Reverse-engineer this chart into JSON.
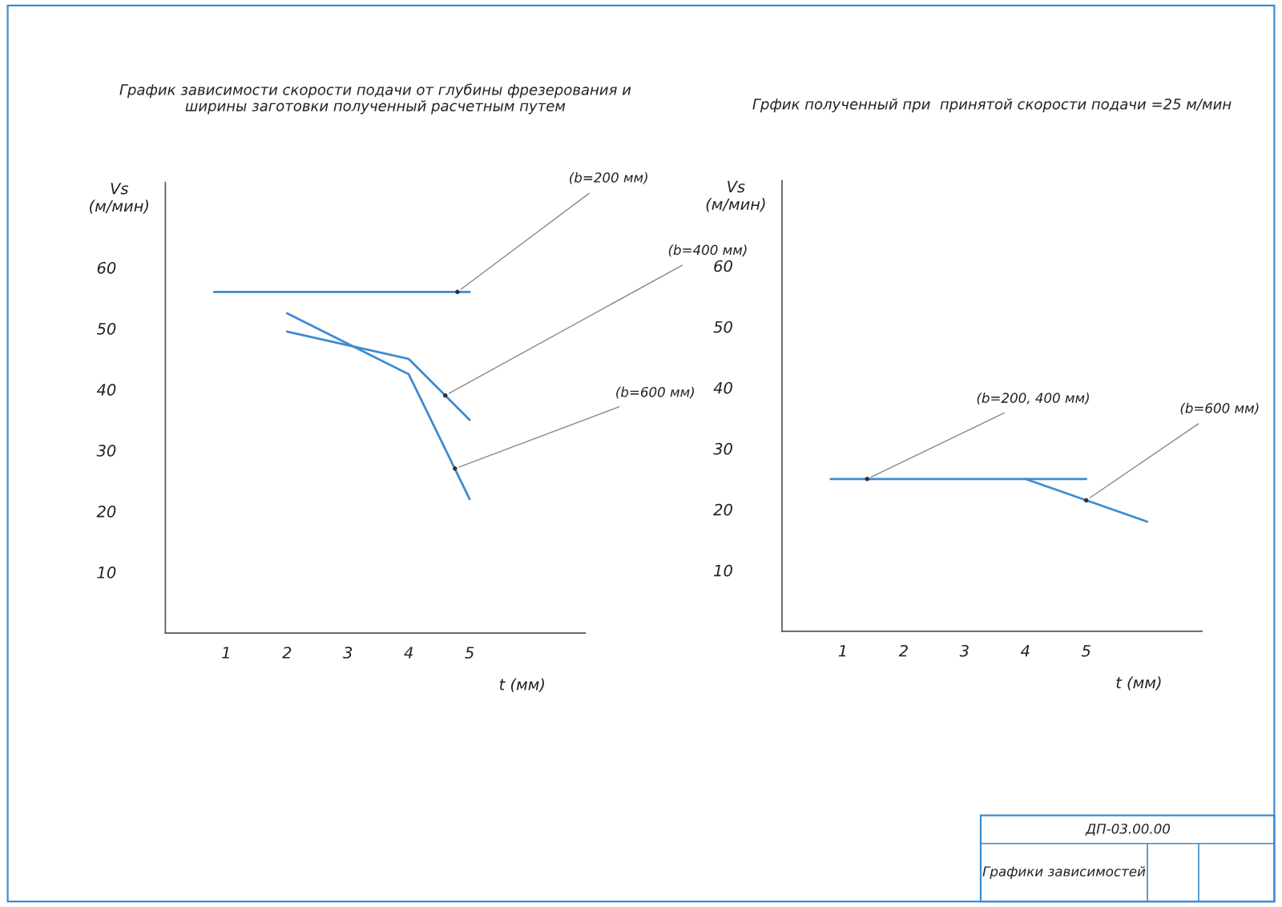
{
  "chart_data": [
    {
      "type": "line",
      "title": "График зависимости скорости подачи от глубины фрезерования и\nширины заготовки полученный расчетным путем",
      "xlabel": "t (мм)",
      "ylabel": "Vs\n(м/мин)",
      "xlim": [
        0,
        6.9
      ],
      "ylim": [
        0,
        74
      ],
      "xticks": [
        1,
        2,
        3,
        4,
        5
      ],
      "yticks": [
        10,
        20,
        30,
        40,
        50,
        60
      ],
      "grid": false,
      "legend": false,
      "marker": "none",
      "line_style": "solid",
      "series": [
        {
          "color": "#3c8cd2",
          "x": [
            0.8,
            5
          ],
          "values": [
            56,
            56
          ]
        },
        {
          "color": "#3c8cd2",
          "x": [
            2,
            4,
            5
          ],
          "values": [
            49.5,
            45,
            35
          ]
        },
        {
          "color": "#3c8cd2",
          "x": [
            2,
            4,
            5
          ],
          "values": [
            52.5,
            42.5,
            22
          ]
        }
      ],
      "annotations": [
        {
          "text": "(b=200 мм)",
          "x": 4.8,
          "y": 56
        },
        {
          "text": "(b=400 мм)",
          "x": 4.6,
          "y": 39
        },
        {
          "text": "(b=600 мм)",
          "x": 4.76,
          "y": 27
        }
      ]
    },
    {
      "type": "line",
      "title": "Грфик полученный при  принятой скорости подачи =25 м/мин",
      "xlabel": "t (мм)",
      "ylabel": "Vs\n(м/мин)",
      "xlim": [
        0,
        6.9
      ],
      "ylim": [
        0,
        74
      ],
      "xticks": [
        1,
        2,
        3,
        4,
        5
      ],
      "yticks": [
        10,
        20,
        30,
        40,
        50,
        60
      ],
      "grid": false,
      "legend": false,
      "marker": "none",
      "line_style": "solid",
      "series": [
        {
          "color": "#3c8cd2",
          "x": [
            0.8,
            5
          ],
          "values": [
            25,
            25
          ]
        },
        {
          "color": "#3c8cd2",
          "x": [
            4,
            6
          ],
          "values": [
            25,
            18
          ]
        }
      ],
      "annotations": [
        {
          "text": "(b=200, 400 мм)",
          "x": 1.4,
          "y": 25
        },
        {
          "text": "(b=600 мм)",
          "x": 5,
          "y": 21.5
        },
        "ДП-03.00.00",
        "Графики зависимостей"
      ]
    }
  ]
}
